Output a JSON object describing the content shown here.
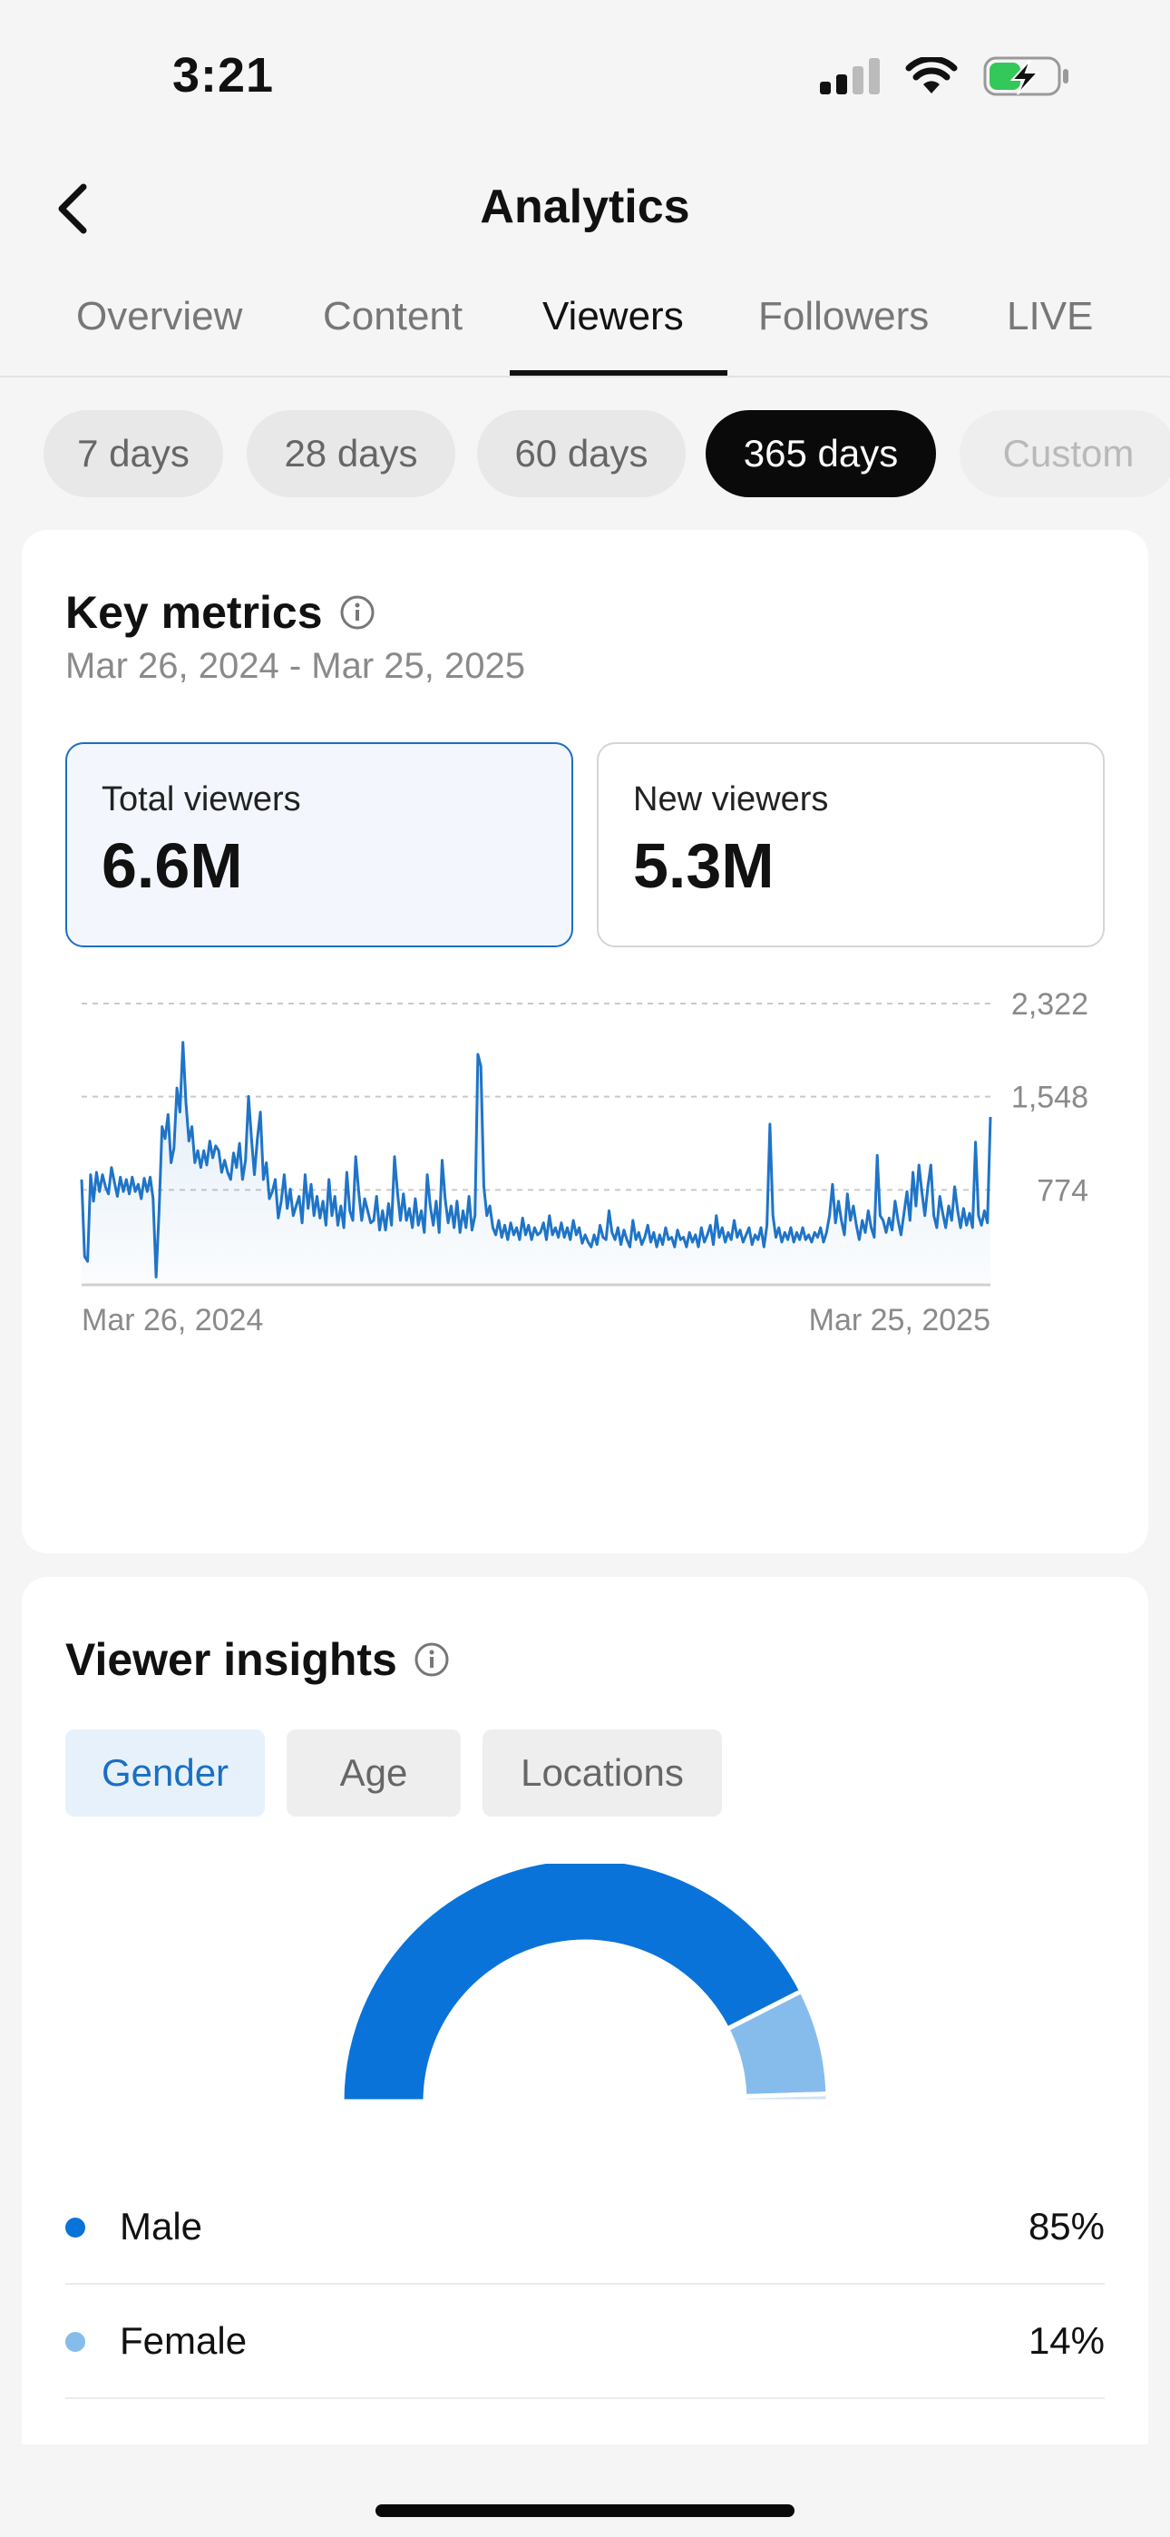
{
  "status_bar": {
    "time": "3:21",
    "icons": [
      "cellular-signal-icon",
      "wifi-icon",
      "battery-charging-icon"
    ],
    "battery_color": "#34c759"
  },
  "header": {
    "title": "Analytics",
    "back_icon": "chevron-left-icon"
  },
  "tabs": [
    {
      "label": "Overview",
      "active": false
    },
    {
      "label": "Content",
      "active": false
    },
    {
      "label": "Viewers",
      "active": true
    },
    {
      "label": "Followers",
      "active": false
    },
    {
      "label": "LIVE",
      "active": false
    }
  ],
  "periods": [
    {
      "label": "7 days",
      "active": false
    },
    {
      "label": "28 days",
      "active": false
    },
    {
      "label": "60 days",
      "active": false
    },
    {
      "label": "365 days",
      "active": true
    },
    {
      "label": "Custom",
      "active": false
    }
  ],
  "key_metrics": {
    "title": "Key metrics",
    "date_range": "Mar 26, 2024 - Mar 25, 2025",
    "total_viewers": {
      "label": "Total viewers",
      "value": "6.6M"
    },
    "new_viewers": {
      "label": "New viewers",
      "value": "5.3M"
    }
  },
  "chart_data": {
    "type": "area",
    "title": "",
    "series": [
      {
        "name": "Total viewers",
        "color": "#1f74c7"
      }
    ],
    "x_labels": [
      "Mar 26, 2024",
      "Mar 25, 2025"
    ],
    "y_ticks": [
      774,
      1548,
      2322
    ],
    "y_tick_labels": [
      "774",
      "1,548",
      "2,322"
    ],
    "ylim": [
      0,
      2322
    ],
    "grid": true,
    "points": [
      [
        0,
        860
      ],
      [
        1,
        220
      ],
      [
        2,
        180
      ],
      [
        3,
        900
      ],
      [
        4,
        680
      ],
      [
        5,
        920
      ],
      [
        6,
        760
      ],
      [
        7,
        900
      ],
      [
        8,
        800
      ],
      [
        9,
        740
      ],
      [
        10,
        960
      ],
      [
        11,
        840
      ],
      [
        12,
        720
      ],
      [
        13,
        880
      ],
      [
        14,
        760
      ],
      [
        15,
        860
      ],
      [
        16,
        740
      ],
      [
        17,
        880
      ],
      [
        18,
        760
      ],
      [
        19,
        820
      ],
      [
        20,
        700
      ],
      [
        21,
        870
      ],
      [
        22,
        760
      ],
      [
        23,
        880
      ],
      [
        24,
        700
      ],
      [
        25,
        50
      ],
      [
        26,
        600
      ],
      [
        27,
        1300
      ],
      [
        28,
        1200
      ],
      [
        29,
        1400
      ],
      [
        30,
        1000
      ],
      [
        31,
        1120
      ],
      [
        32,
        1620
      ],
      [
        33,
        1420
      ],
      [
        34,
        2000
      ],
      [
        35,
        1500
      ],
      [
        36,
        1180
      ],
      [
        37,
        1300
      ],
      [
        38,
        1000
      ],
      [
        39,
        1100
      ],
      [
        40,
        960
      ],
      [
        41,
        1100
      ],
      [
        42,
        980
      ],
      [
        43,
        1180
      ],
      [
        44,
        1040
      ],
      [
        45,
        1140
      ],
      [
        46,
        1100
      ],
      [
        47,
        920
      ],
      [
        48,
        1020
      ],
      [
        49,
        920
      ],
      [
        50,
        860
      ],
      [
        51,
        1080
      ],
      [
        52,
        960
      ],
      [
        53,
        1160
      ],
      [
        54,
        860
      ],
      [
        55,
        1020
      ],
      [
        56,
        1550
      ],
      [
        57,
        1200
      ],
      [
        58,
        900
      ],
      [
        59,
        1200
      ],
      [
        60,
        1420
      ],
      [
        61,
        860
      ],
      [
        62,
        1000
      ],
      [
        63,
        700
      ],
      [
        64,
        760
      ],
      [
        65,
        860
      ],
      [
        66,
        540
      ],
      [
        67,
        680
      ],
      [
        68,
        900
      ],
      [
        69,
        620
      ],
      [
        70,
        780
      ],
      [
        71,
        560
      ],
      [
        72,
        640
      ],
      [
        73,
        720
      ],
      [
        74,
        500
      ],
      [
        75,
        900
      ],
      [
        76,
        620
      ],
      [
        77,
        820
      ],
      [
        78,
        560
      ],
      [
        79,
        720
      ],
      [
        80,
        540
      ],
      [
        81,
        680
      ],
      [
        82,
        480
      ],
      [
        83,
        860
      ],
      [
        84,
        560
      ],
      [
        85,
        720
      ],
      [
        86,
        480
      ],
      [
        87,
        640
      ],
      [
        88,
        460
      ],
      [
        89,
        920
      ],
      [
        90,
        600
      ],
      [
        91,
        520
      ],
      [
        92,
        1050
      ],
      [
        93,
        760
      ],
      [
        94,
        520
      ],
      [
        95,
        700
      ],
      [
        96,
        600
      ],
      [
        97,
        500
      ],
      [
        98,
        520
      ],
      [
        99,
        720
      ],
      [
        100,
        440
      ],
      [
        101,
        600
      ],
      [
        102,
        440
      ],
      [
        103,
        660
      ],
      [
        104,
        480
      ],
      [
        105,
        1050
      ],
      [
        106,
        760
      ],
      [
        107,
        520
      ],
      [
        108,
        740
      ],
      [
        109,
        520
      ],
      [
        110,
        620
      ],
      [
        111,
        460
      ],
      [
        112,
        700
      ],
      [
        113,
        480
      ],
      [
        114,
        600
      ],
      [
        115,
        420
      ],
      [
        116,
        900
      ],
      [
        117,
        640
      ],
      [
        118,
        480
      ],
      [
        119,
        680
      ],
      [
        120,
        420
      ],
      [
        121,
        1020
      ],
      [
        122,
        700
      ],
      [
        123,
        500
      ],
      [
        124,
        640
      ],
      [
        125,
        460
      ],
      [
        126,
        680
      ],
      [
        127,
        420
      ],
      [
        128,
        600
      ],
      [
        129,
        460
      ],
      [
        130,
        720
      ],
      [
        131,
        440
      ],
      [
        132,
        560
      ],
      [
        133,
        1900
      ],
      [
        134,
        1800
      ],
      [
        135,
        800
      ],
      [
        136,
        560
      ],
      [
        137,
        640
      ],
      [
        138,
        460
      ],
      [
        139,
        400
      ],
      [
        140,
        520
      ],
      [
        141,
        380
      ],
      [
        142,
        480
      ],
      [
        143,
        360
      ],
      [
        144,
        500
      ],
      [
        145,
        400
      ],
      [
        146,
        460
      ],
      [
        147,
        360
      ],
      [
        148,
        540
      ],
      [
        149,
        400
      ],
      [
        150,
        480
      ],
      [
        151,
        360
      ],
      [
        152,
        460
      ],
      [
        153,
        400
      ],
      [
        154,
        420
      ],
      [
        155,
        500
      ],
      [
        156,
        360
      ],
      [
        157,
        560
      ],
      [
        158,
        400
      ],
      [
        159,
        460
      ],
      [
        160,
        380
      ],
      [
        161,
        500
      ],
      [
        162,
        380
      ],
      [
        163,
        460
      ],
      [
        164,
        360
      ],
      [
        165,
        520
      ],
      [
        166,
        400
      ],
      [
        167,
        460
      ],
      [
        168,
        330
      ],
      [
        169,
        400
      ],
      [
        170,
        340
      ],
      [
        171,
        300
      ],
      [
        172,
        400
      ],
      [
        173,
        320
      ],
      [
        174,
        480
      ],
      [
        175,
        380
      ],
      [
        176,
        360
      ],
      [
        177,
        600
      ],
      [
        178,
        420
      ],
      [
        179,
        360
      ],
      [
        180,
        460
      ],
      [
        181,
        320
      ],
      [
        182,
        440
      ],
      [
        183,
        360
      ],
      [
        184,
        300
      ],
      [
        185,
        520
      ],
      [
        186,
        360
      ],
      [
        187,
        420
      ],
      [
        188,
        320
      ],
      [
        189,
        380
      ],
      [
        190,
        480
      ],
      [
        191,
        340
      ],
      [
        192,
        420
      ],
      [
        193,
        300
      ],
      [
        194,
        400
      ],
      [
        195,
        320
      ],
      [
        196,
        460
      ],
      [
        197,
        360
      ],
      [
        198,
        380
      ],
      [
        199,
        300
      ],
      [
        200,
        440
      ],
      [
        201,
        360
      ],
      [
        202,
        380
      ],
      [
        203,
        300
      ],
      [
        204,
        420
      ],
      [
        205,
        340
      ],
      [
        206,
        400
      ],
      [
        207,
        300
      ],
      [
        208,
        460
      ],
      [
        209,
        340
      ],
      [
        210,
        400
      ],
      [
        211,
        480
      ],
      [
        212,
        320
      ],
      [
        213,
        560
      ],
      [
        214,
        380
      ],
      [
        215,
        460
      ],
      [
        216,
        340
      ],
      [
        217,
        420
      ],
      [
        218,
        360
      ],
      [
        219,
        520
      ],
      [
        220,
        380
      ],
      [
        221,
        440
      ],
      [
        222,
        340
      ],
      [
        223,
        400
      ],
      [
        224,
        460
      ],
      [
        225,
        320
      ],
      [
        226,
        400
      ],
      [
        227,
        360
      ],
      [
        228,
        460
      ],
      [
        229,
        300
      ],
      [
        230,
        480
      ],
      [
        231,
        1320
      ],
      [
        232,
        560
      ],
      [
        233,
        380
      ],
      [
        234,
        460
      ],
      [
        235,
        340
      ],
      [
        236,
        420
      ],
      [
        237,
        360
      ],
      [
        238,
        460
      ],
      [
        239,
        340
      ],
      [
        240,
        420
      ],
      [
        241,
        360
      ],
      [
        242,
        460
      ],
      [
        243,
        360
      ],
      [
        244,
        400
      ],
      [
        245,
        340
      ],
      [
        246,
        420
      ],
      [
        247,
        380
      ],
      [
        248,
        460
      ],
      [
        249,
        340
      ],
      [
        250,
        420
      ],
      [
        251,
        560
      ],
      [
        252,
        820
      ],
      [
        253,
        500
      ],
      [
        254,
        680
      ],
      [
        255,
        520
      ],
      [
        256,
        400
      ],
      [
        257,
        740
      ],
      [
        258,
        520
      ],
      [
        259,
        640
      ],
      [
        260,
        480
      ],
      [
        261,
        360
      ],
      [
        262,
        520
      ],
      [
        263,
        420
      ],
      [
        264,
        600
      ],
      [
        265,
        460
      ],
      [
        266,
        380
      ],
      [
        267,
        1060
      ],
      [
        268,
        560
      ],
      [
        269,
        520
      ],
      [
        270,
        420
      ],
      [
        271,
        540
      ],
      [
        272,
        440
      ],
      [
        273,
        680
      ],
      [
        274,
        520
      ],
      [
        275,
        400
      ],
      [
        276,
        580
      ],
      [
        277,
        760
      ],
      [
        278,
        520
      ],
      [
        279,
        920
      ],
      [
        280,
        640
      ],
      [
        281,
        980
      ],
      [
        282,
        760
      ],
      [
        283,
        560
      ],
      [
        284,
        800
      ],
      [
        285,
        980
      ],
      [
        286,
        560
      ],
      [
        287,
        460
      ],
      [
        288,
        720
      ],
      [
        289,
        580
      ],
      [
        290,
        460
      ],
      [
        291,
        640
      ],
      [
        292,
        520
      ],
      [
        293,
        800
      ],
      [
        294,
        600
      ],
      [
        295,
        460
      ],
      [
        296,
        620
      ],
      [
        297,
        480
      ],
      [
        298,
        580
      ],
      [
        299,
        460
      ],
      [
        300,
        1170
      ],
      [
        301,
        560
      ],
      [
        302,
        480
      ],
      [
        303,
        600
      ],
      [
        304,
        500
      ],
      [
        305,
        1380
      ]
    ]
  },
  "viewer_insights": {
    "title": "Viewer insights",
    "tabs": [
      {
        "label": "Gender",
        "active": true
      },
      {
        "label": "Age",
        "active": false
      },
      {
        "label": "Locations",
        "active": false
      }
    ],
    "gender": [
      {
        "label": "Male",
        "pct_text": "85%",
        "value": 85,
        "color": "#0a73d9"
      },
      {
        "label": "Female",
        "pct_text": "14%",
        "value": 14,
        "color": "#85bcec"
      },
      {
        "label": "",
        "pct_text": "",
        "value": 1,
        "color": "#cfe3f6"
      }
    ]
  }
}
